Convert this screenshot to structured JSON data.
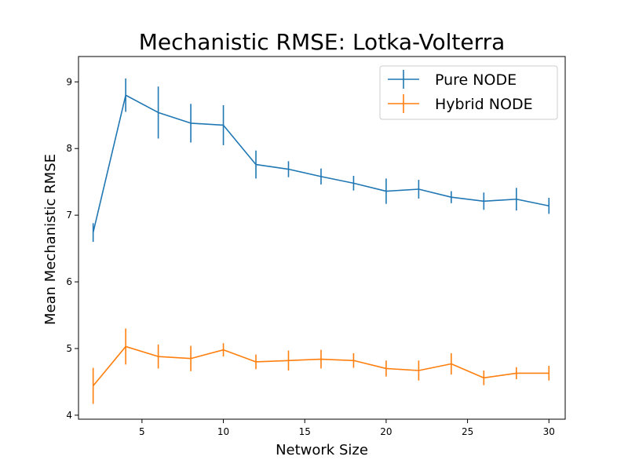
{
  "chart_data": {
    "type": "line",
    "title": "Mechanistic RMSE: Lotka-Volterra",
    "xlabel": "Network Size",
    "ylabel": "Mean Mechanistic RMSE",
    "xlim": [
      1.1,
      31.0
    ],
    "ylim": [
      3.94,
      9.38
    ],
    "xticks": [
      5,
      10,
      15,
      20,
      25,
      30
    ],
    "yticks": [
      4,
      5,
      6,
      7,
      8,
      9
    ],
    "grid": false,
    "legend_position": "top-right",
    "x": [
      2,
      4,
      6,
      8,
      10,
      12,
      14,
      16,
      18,
      20,
      22,
      24,
      26,
      28,
      30
    ],
    "series": [
      {
        "name": "Pure NODE",
        "color": "#1f77b4",
        "values": [
          6.74,
          8.8,
          8.54,
          8.38,
          8.35,
          7.76,
          7.69,
          7.58,
          7.48,
          7.36,
          7.39,
          7.27,
          7.21,
          7.24,
          7.14
        ],
        "errors": [
          0.14,
          0.25,
          0.39,
          0.29,
          0.3,
          0.21,
          0.12,
          0.12,
          0.11,
          0.19,
          0.14,
          0.09,
          0.13,
          0.17,
          0.12
        ]
      },
      {
        "name": "Hybrid NODE",
        "color": "#ff7f0e",
        "values": [
          4.44,
          5.03,
          4.88,
          4.85,
          4.98,
          4.8,
          4.82,
          4.84,
          4.82,
          4.7,
          4.67,
          4.77,
          4.56,
          4.63,
          4.63
        ],
        "errors": [
          0.27,
          0.27,
          0.18,
          0.19,
          0.1,
          0.11,
          0.15,
          0.14,
          0.11,
          0.12,
          0.15,
          0.16,
          0.11,
          0.09,
          0.11
        ]
      }
    ]
  }
}
